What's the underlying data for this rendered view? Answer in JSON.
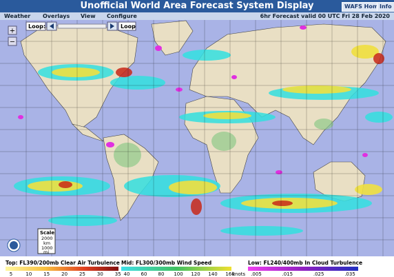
{
  "header": {
    "title": "Unofficial World Area Forecast System Display",
    "buttons": [
      "WAFS Home",
      "Info"
    ]
  },
  "menu": {
    "items": [
      "Weather",
      "Overlays",
      "View",
      "Configure"
    ],
    "forecast": "6hr Forecast valid 00 UTC Fri 28 Feb 2020"
  },
  "loop": {
    "left": "Loop:",
    "right": "Loop"
  },
  "scale": {
    "title": "Scale",
    "km_value": "2000",
    "km_unit": "km",
    "mi_value": "1000",
    "mi_unit": "mi"
  },
  "legend": {
    "top": {
      "label": "Top: FL390/200mb Clear Air Turbulence",
      "ticks": [
        5,
        10,
        15,
        20,
        25,
        30,
        35
      ]
    },
    "mid": {
      "label": "Mid: FL300/300mb Wind Speed",
      "ticks": [
        40,
        60,
        80,
        100,
        120,
        140,
        160
      ],
      "unit": "knots"
    },
    "low": {
      "label": "Low: FL240/400mb In Cloud Turbulence",
      "ticks": [
        ".005",
        ".015",
        ".025",
        ".035"
      ]
    }
  }
}
